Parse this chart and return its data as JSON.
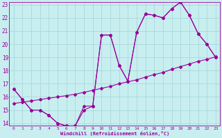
{
  "title": "Windchill (Refroidissement éolien,°C)",
  "bg_color": "#c8eef0",
  "grid_color": "#a8d8dc",
  "line_color": "#990099",
  "xlim": [
    -0.5,
    23.5
  ],
  "ylim": [
    13.8,
    23.2
  ],
  "xticks": [
    0,
    1,
    2,
    3,
    4,
    5,
    6,
    7,
    8,
    9,
    10,
    11,
    12,
    13,
    14,
    15,
    16,
    17,
    18,
    19,
    20,
    21,
    22,
    23
  ],
  "yticks": [
    14,
    15,
    16,
    17,
    18,
    19,
    20,
    21,
    22,
    23
  ],
  "line1_x": [
    0,
    1,
    2,
    3,
    4,
    5,
    6,
    7,
    8,
    9,
    10,
    11,
    12,
    13,
    14,
    15,
    16,
    17,
    18,
    19,
    20,
    21,
    22,
    23
  ],
  "line1_y": [
    16.6,
    15.8,
    15.0,
    15.0,
    14.6,
    14.0,
    13.8,
    13.8,
    15.0,
    15.3,
    20.7,
    20.7,
    18.4,
    17.2,
    20.9,
    22.3,
    22.2,
    22.0,
    22.7,
    23.2,
    22.2,
    20.8,
    20.0,
    19.0
  ],
  "line2_x": [
    0,
    1,
    2,
    3,
    4,
    5,
    6,
    7,
    8,
    9,
    10,
    11,
    12,
    13,
    14,
    15,
    16,
    17,
    18,
    19,
    20,
    21,
    22,
    23
  ],
  "line2_y": [
    16.6,
    15.8,
    15.0,
    15.0,
    14.6,
    14.0,
    13.8,
    13.8,
    15.3,
    15.3,
    20.7,
    20.7,
    18.4,
    17.2,
    20.9,
    22.3,
    22.2,
    22.0,
    22.7,
    23.2,
    22.2,
    20.8,
    20.0,
    19.0
  ],
  "line3_x": [
    0,
    1,
    2,
    3,
    4,
    5,
    6,
    7,
    8,
    9,
    10,
    11,
    12,
    13,
    14,
    15,
    16,
    17,
    18,
    19,
    20,
    21,
    22,
    23
  ],
  "line3_y": [
    15.5,
    15.6,
    15.7,
    15.8,
    15.9,
    16.0,
    16.1,
    16.2,
    16.35,
    16.5,
    16.65,
    16.8,
    17.0,
    17.15,
    17.3,
    17.5,
    17.7,
    17.85,
    18.1,
    18.3,
    18.5,
    18.7,
    18.85,
    19.05
  ]
}
